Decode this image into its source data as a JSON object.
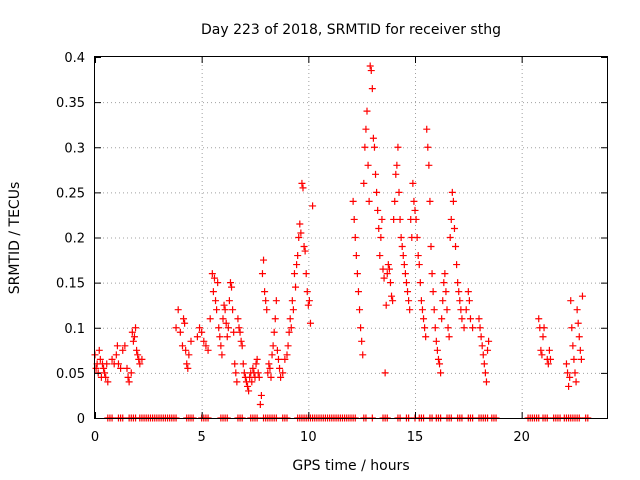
{
  "chart_data": {
    "type": "scatter",
    "title": "Day 223 of 2018, SRMTID for receiver sthg",
    "xlabel": "GPS time / hours",
    "ylabel": "SRMTID / TECUs",
    "xlim": [
      0,
      24
    ],
    "ylim": [
      0,
      0.4
    ],
    "x_ticks": [
      0,
      5,
      10,
      15,
      20
    ],
    "y_ticks": [
      0,
      0.05,
      0.1,
      0.15,
      0.2,
      0.25,
      0.3,
      0.35,
      0.4
    ],
    "x_tick_labels": [
      "0",
      "5",
      "10",
      "15",
      "20"
    ],
    "y_tick_labels": [
      "0",
      "0.05",
      "0.1",
      "0.15",
      "0.2",
      "0.25",
      "0.3",
      "0.35",
      "0.4"
    ],
    "grid": true,
    "legend": false,
    "marker": "+",
    "color": "#ff0000",
    "series": [
      {
        "values": [
          [
            0.0,
            0.07
          ],
          [
            0.05,
            0.055
          ],
          [
            0.1,
            0.06
          ],
          [
            0.15,
            0.05
          ],
          [
            0.2,
            0.075
          ],
          [
            0.25,
            0.065
          ],
          [
            0.3,
            0.045
          ],
          [
            0.35,
            0.06
          ],
          [
            0.4,
            0.055
          ],
          [
            0.45,
            0.05
          ],
          [
            0.5,
            0.045
          ],
          [
            0.55,
            0.06
          ],
          [
            0.6,
            0.04
          ],
          [
            0.8,
            0.065
          ],
          [
            0.9,
            0.06
          ],
          [
            1.0,
            0.07
          ],
          [
            1.05,
            0.08
          ],
          [
            1.1,
            0.06
          ],
          [
            1.2,
            0.055
          ],
          [
            1.3,
            0.075
          ],
          [
            1.4,
            0.08
          ],
          [
            1.5,
            0.055
          ],
          [
            1.55,
            0.045
          ],
          [
            1.6,
            0.04
          ],
          [
            1.7,
            0.05
          ],
          [
            1.75,
            0.095
          ],
          [
            1.8,
            0.085
          ],
          [
            1.85,
            0.09
          ],
          [
            1.9,
            0.1
          ],
          [
            1.95,
            0.075
          ],
          [
            2.0,
            0.07
          ],
          [
            2.05,
            0.065
          ],
          [
            2.1,
            0.06
          ],
          [
            2.2,
            0.065
          ],
          [
            3.8,
            0.1
          ],
          [
            3.9,
            0.12
          ],
          [
            4.0,
            0.095
          ],
          [
            4.1,
            0.08
          ],
          [
            4.15,
            0.11
          ],
          [
            4.2,
            0.105
          ],
          [
            4.25,
            0.075
          ],
          [
            4.3,
            0.06
          ],
          [
            4.35,
            0.055
          ],
          [
            4.4,
            0.07
          ],
          [
            4.5,
            0.085
          ],
          [
            4.8,
            0.09
          ],
          [
            4.9,
            0.1
          ],
          [
            5.0,
            0.095
          ],
          [
            5.1,
            0.085
          ],
          [
            5.2,
            0.08
          ],
          [
            5.3,
            0.075
          ],
          [
            5.4,
            0.11
          ],
          [
            5.5,
            0.16
          ],
          [
            5.55,
            0.14
          ],
          [
            5.6,
            0.155
          ],
          [
            5.65,
            0.13
          ],
          [
            5.7,
            0.12
          ],
          [
            5.75,
            0.15
          ],
          [
            5.8,
            0.1
          ],
          [
            5.85,
            0.09
          ],
          [
            5.9,
            0.08
          ],
          [
            5.95,
            0.07
          ],
          [
            6.0,
            0.11
          ],
          [
            6.05,
            0.125
          ],
          [
            6.1,
            0.12
          ],
          [
            6.15,
            0.105
          ],
          [
            6.2,
            0.09
          ],
          [
            6.25,
            0.1
          ],
          [
            6.3,
            0.13
          ],
          [
            6.35,
            0.15
          ],
          [
            6.4,
            0.145
          ],
          [
            6.45,
            0.12
          ],
          [
            6.5,
            0.095
          ],
          [
            6.55,
            0.06
          ],
          [
            6.6,
            0.05
          ],
          [
            6.65,
            0.04
          ],
          [
            6.7,
            0.11
          ],
          [
            6.75,
            0.1
          ],
          [
            6.8,
            0.095
          ],
          [
            6.85,
            0.085
          ],
          [
            6.9,
            0.08
          ],
          [
            6.95,
            0.06
          ],
          [
            7.0,
            0.05
          ],
          [
            7.05,
            0.045
          ],
          [
            7.1,
            0.04
          ],
          [
            7.15,
            0.035
          ],
          [
            7.2,
            0.03
          ],
          [
            7.25,
            0.045
          ],
          [
            7.3,
            0.05
          ],
          [
            7.35,
            0.04
          ],
          [
            7.4,
            0.055
          ],
          [
            7.45,
            0.05
          ],
          [
            7.5,
            0.045
          ],
          [
            7.55,
            0.06
          ],
          [
            7.6,
            0.065
          ],
          [
            7.65,
            0.05
          ],
          [
            7.7,
            0.045
          ],
          [
            7.75,
            0.015
          ],
          [
            7.8,
            0.025
          ],
          [
            7.85,
            0.16
          ],
          [
            7.9,
            0.175
          ],
          [
            7.95,
            0.14
          ],
          [
            8.0,
            0.13
          ],
          [
            8.05,
            0.12
          ],
          [
            8.1,
            0.05
          ],
          [
            8.15,
            0.06
          ],
          [
            8.2,
            0.055
          ],
          [
            8.25,
            0.045
          ],
          [
            8.3,
            0.07
          ],
          [
            8.35,
            0.08
          ],
          [
            8.4,
            0.095
          ],
          [
            8.45,
            0.11
          ],
          [
            8.5,
            0.13
          ],
          [
            8.55,
            0.075
          ],
          [
            8.6,
            0.065
          ],
          [
            8.65,
            0.055
          ],
          [
            8.7,
            0.045
          ],
          [
            8.8,
            0.05
          ],
          [
            8.9,
            0.065
          ],
          [
            9.0,
            0.07
          ],
          [
            9.05,
            0.08
          ],
          [
            9.1,
            0.095
          ],
          [
            9.15,
            0.11
          ],
          [
            9.2,
            0.1
          ],
          [
            9.25,
            0.13
          ],
          [
            9.3,
            0.12
          ],
          [
            9.35,
            0.16
          ],
          [
            9.4,
            0.145
          ],
          [
            9.45,
            0.17
          ],
          [
            9.5,
            0.18
          ],
          [
            9.55,
            0.2
          ],
          [
            9.6,
            0.215
          ],
          [
            9.65,
            0.205
          ],
          [
            9.7,
            0.26
          ],
          [
            9.75,
            0.255
          ],
          [
            9.8,
            0.19
          ],
          [
            9.85,
            0.185
          ],
          [
            9.9,
            0.16
          ],
          [
            9.95,
            0.14
          ],
          [
            10.0,
            0.125
          ],
          [
            10.05,
            0.13
          ],
          [
            10.1,
            0.105
          ],
          [
            10.2,
            0.235
          ],
          [
            12.1,
            0.24
          ],
          [
            12.15,
            0.22
          ],
          [
            12.2,
            0.2
          ],
          [
            12.25,
            0.18
          ],
          [
            12.3,
            0.16
          ],
          [
            12.35,
            0.14
          ],
          [
            12.4,
            0.12
          ],
          [
            12.45,
            0.1
          ],
          [
            12.5,
            0.085
          ],
          [
            12.55,
            0.07
          ],
          [
            12.6,
            0.26
          ],
          [
            12.65,
            0.3
          ],
          [
            12.7,
            0.32
          ],
          [
            12.75,
            0.34
          ],
          [
            12.8,
            0.28
          ],
          [
            12.85,
            0.24
          ],
          [
            12.9,
            0.39
          ],
          [
            12.95,
            0.385
          ],
          [
            13.0,
            0.365
          ],
          [
            13.05,
            0.31
          ],
          [
            13.1,
            0.3
          ],
          [
            13.15,
            0.27
          ],
          [
            13.2,
            0.25
          ],
          [
            13.25,
            0.23
          ],
          [
            13.3,
            0.21
          ],
          [
            13.35,
            0.18
          ],
          [
            13.4,
            0.2
          ],
          [
            13.45,
            0.22
          ],
          [
            13.5,
            0.165
          ],
          [
            13.55,
            0.155
          ],
          [
            13.6,
            0.05
          ],
          [
            13.65,
            0.125
          ],
          [
            13.7,
            0.16
          ],
          [
            13.75,
            0.17
          ],
          [
            13.8,
            0.165
          ],
          [
            13.85,
            0.15
          ],
          [
            13.9,
            0.135
          ],
          [
            13.95,
            0.13
          ],
          [
            14.0,
            0.22
          ],
          [
            14.05,
            0.24
          ],
          [
            14.1,
            0.27
          ],
          [
            14.15,
            0.28
          ],
          [
            14.2,
            0.3
          ],
          [
            14.25,
            0.25
          ],
          [
            14.3,
            0.22
          ],
          [
            14.35,
            0.2
          ],
          [
            14.4,
            0.19
          ],
          [
            14.45,
            0.18
          ],
          [
            14.5,
            0.17
          ],
          [
            14.55,
            0.16
          ],
          [
            14.6,
            0.15
          ],
          [
            14.65,
            0.14
          ],
          [
            14.7,
            0.13
          ],
          [
            14.75,
            0.12
          ],
          [
            14.8,
            0.22
          ],
          [
            14.85,
            0.2
          ],
          [
            14.9,
            0.26
          ],
          [
            14.95,
            0.24
          ],
          [
            15.0,
            0.23
          ],
          [
            15.05,
            0.22
          ],
          [
            15.1,
            0.2
          ],
          [
            15.15,
            0.18
          ],
          [
            15.2,
            0.17
          ],
          [
            15.25,
            0.15
          ],
          [
            15.3,
            0.13
          ],
          [
            15.35,
            0.12
          ],
          [
            15.4,
            0.11
          ],
          [
            15.45,
            0.1
          ],
          [
            15.5,
            0.09
          ],
          [
            15.55,
            0.32
          ],
          [
            15.6,
            0.3
          ],
          [
            15.65,
            0.28
          ],
          [
            15.7,
            0.24
          ],
          [
            15.75,
            0.19
          ],
          [
            15.8,
            0.16
          ],
          [
            15.85,
            0.14
          ],
          [
            15.9,
            0.12
          ],
          [
            15.95,
            0.1
          ],
          [
            16.0,
            0.085
          ],
          [
            16.05,
            0.075
          ],
          [
            16.1,
            0.065
          ],
          [
            16.15,
            0.06
          ],
          [
            16.2,
            0.05
          ],
          [
            16.25,
            0.11
          ],
          [
            16.3,
            0.13
          ],
          [
            16.35,
            0.15
          ],
          [
            16.4,
            0.16
          ],
          [
            16.45,
            0.14
          ],
          [
            16.5,
            0.12
          ],
          [
            16.55,
            0.1
          ],
          [
            16.6,
            0.09
          ],
          [
            16.65,
            0.2
          ],
          [
            16.7,
            0.22
          ],
          [
            16.75,
            0.25
          ],
          [
            16.8,
            0.24
          ],
          [
            16.85,
            0.21
          ],
          [
            16.9,
            0.19
          ],
          [
            16.95,
            0.17
          ],
          [
            17.0,
            0.15
          ],
          [
            17.05,
            0.14
          ],
          [
            17.1,
            0.13
          ],
          [
            17.15,
            0.12
          ],
          [
            17.2,
            0.11
          ],
          [
            17.3,
            0.1
          ],
          [
            17.4,
            0.12
          ],
          [
            17.5,
            0.14
          ],
          [
            17.55,
            0.13
          ],
          [
            17.6,
            0.11
          ],
          [
            17.7,
            0.1
          ],
          [
            18.0,
            0.11
          ],
          [
            18.05,
            0.1
          ],
          [
            18.1,
            0.09
          ],
          [
            18.15,
            0.08
          ],
          [
            18.2,
            0.07
          ],
          [
            18.25,
            0.06
          ],
          [
            18.3,
            0.05
          ],
          [
            18.35,
            0.04
          ],
          [
            18.4,
            0.075
          ],
          [
            18.45,
            0.085
          ],
          [
            20.8,
            0.11
          ],
          [
            20.85,
            0.1
          ],
          [
            20.9,
            0.075
          ],
          [
            20.95,
            0.07
          ],
          [
            21.0,
            0.09
          ],
          [
            21.05,
            0.1
          ],
          [
            21.2,
            0.065
          ],
          [
            21.25,
            0.06
          ],
          [
            21.3,
            0.075
          ],
          [
            21.35,
            0.065
          ],
          [
            22.1,
            0.06
          ],
          [
            22.15,
            0.05
          ],
          [
            22.2,
            0.035
          ],
          [
            22.25,
            0.045
          ],
          [
            22.3,
            0.13
          ],
          [
            22.35,
            0.1
          ],
          [
            22.4,
            0.08
          ],
          [
            22.45,
            0.065
          ],
          [
            22.5,
            0.05
          ],
          [
            22.55,
            0.04
          ],
          [
            22.6,
            0.12
          ],
          [
            22.65,
            0.105
          ],
          [
            22.7,
            0.09
          ],
          [
            22.75,
            0.075
          ],
          [
            22.8,
            0.065
          ],
          [
            22.85,
            0.135
          ]
        ]
      }
    ],
    "zero_series_x": [
      0.6,
      0.7,
      0.8,
      1.1,
      1.2,
      1.3,
      1.6,
      1.7,
      1.8,
      1.9,
      2.1,
      2.2,
      2.3,
      2.4,
      2.5,
      2.6,
      2.7,
      2.8,
      2.9,
      3.0,
      3.1,
      3.2,
      3.3,
      3.4,
      3.5,
      3.6,
      3.7,
      3.8,
      4.3,
      4.4,
      4.5,
      4.6,
      5.0,
      5.1,
      5.2,
      5.3,
      5.9,
      6.0,
      6.1,
      6.2,
      6.7,
      6.8,
      6.9,
      7.3,
      7.4,
      7.5,
      7.6,
      7.9,
      8.0,
      8.1,
      8.2,
      8.3,
      8.4,
      8.5,
      8.8,
      8.9,
      9.0,
      9.5,
      9.6,
      9.7,
      9.8,
      9.9,
      10.0,
      10.1,
      10.2,
      10.3,
      10.4,
      10.5,
      10.6,
      10.7,
      10.8,
      10.9,
      11.0,
      11.1,
      11.2,
      11.3,
      11.4,
      11.5,
      11.6,
      11.7,
      11.8,
      11.9,
      12.0,
      12.1,
      12.2,
      12.6,
      12.7,
      13.0,
      13.5,
      13.6,
      13.7,
      14.2,
      14.3,
      14.6,
      14.7,
      15.0,
      15.2,
      15.3,
      15.4,
      15.7,
      15.8,
      16.0,
      16.1,
      16.2,
      16.5,
      16.6,
      16.7,
      17.0,
      17.1,
      17.2,
      17.5,
      17.6,
      17.7,
      18.0,
      18.1,
      18.2,
      18.3,
      18.4,
      18.6,
      18.7,
      18.8,
      20.3,
      20.4,
      20.5,
      20.6,
      20.7,
      20.8,
      21.0,
      21.1,
      21.2,
      21.5,
      21.6,
      21.7,
      21.8,
      22.0,
      22.1,
      22.2,
      22.3,
      22.4,
      22.5,
      22.6,
      22.7,
      23.0,
      23.1
    ]
  }
}
